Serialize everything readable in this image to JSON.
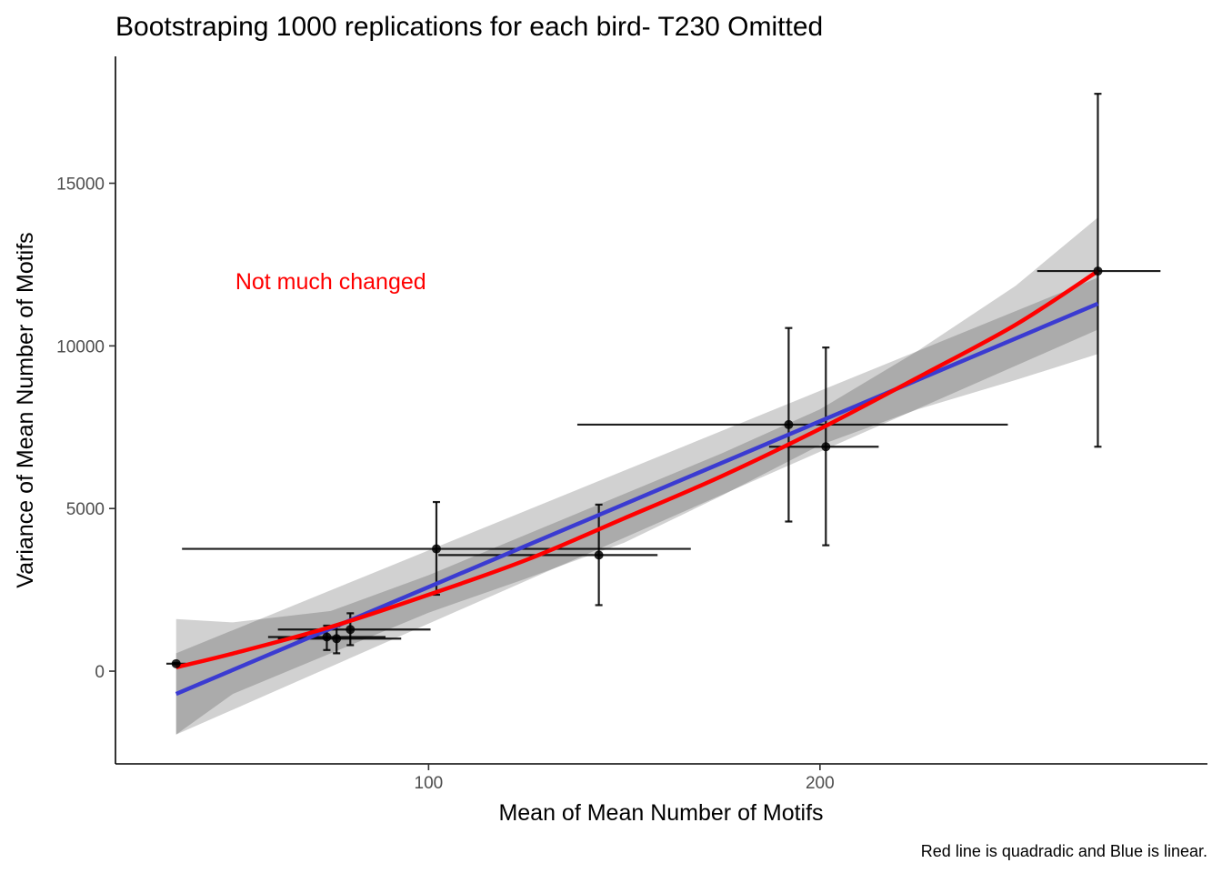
{
  "chart_data": {
    "type": "scatter",
    "title": "Bootstraping 1000 replications for each bird- T230 Omitted",
    "xlabel": "Mean of Mean Number of Motifs",
    "ylabel": "Variance of Mean Number of Motifs",
    "caption": "Red line is quadradic and Blue is linear.",
    "annotation": {
      "text": "Not much changed",
      "x": 75,
      "y": 12000,
      "color": "#ff0000"
    },
    "xlim": [
      20,
      299
    ],
    "ylim": [
      -2850,
      18900
    ],
    "x_ticks": [
      {
        "value": 100,
        "label": "100"
      },
      {
        "value": 200,
        "label": "200"
      }
    ],
    "y_ticks": [
      {
        "value": 0,
        "label": "0"
      },
      {
        "value": 5000,
        "label": "5000"
      },
      {
        "value": 10000,
        "label": "10000"
      },
      {
        "value": 15000,
        "label": "15000"
      }
    ],
    "grid": false,
    "legend": "none",
    "colors": {
      "quadratic": "#ff0000",
      "linear": "#3b3bd1",
      "ci_band": "#000000",
      "points": "#000000"
    },
    "points": [
      {
        "x": 35.5,
        "y": 230,
        "xmin": 33,
        "xmax": 38,
        "ymin": 210,
        "ymax": 250
      },
      {
        "x": 74,
        "y": 1050,
        "xmin": 59,
        "xmax": 89,
        "ymin": 650,
        "ymax": 1400
      },
      {
        "x": 76.5,
        "y": 1000,
        "xmin": 61.5,
        "xmax": 93,
        "ymin": 550,
        "ymax": 1380
      },
      {
        "x": 80,
        "y": 1280,
        "xmin": 61.5,
        "xmax": 100.5,
        "ymin": 800,
        "ymax": 1780
      },
      {
        "x": 102,
        "y": 3760,
        "xmin": 37,
        "xmax": 167,
        "ymin": 2350,
        "ymax": 5200
      },
      {
        "x": 143.5,
        "y": 3570,
        "xmin": 102.5,
        "xmax": 158.5,
        "ymin": 2030,
        "ymax": 5120
      },
      {
        "x": 192,
        "y": 7580,
        "xmin": 138,
        "xmax": 248,
        "ymin": 4600,
        "ymax": 10550
      },
      {
        "x": 201.5,
        "y": 6900,
        "xmin": 187,
        "xmax": 215,
        "ymin": 3870,
        "ymax": 9950
      },
      {
        "x": 271,
        "y": 12300,
        "xmin": 255.5,
        "xmax": 287,
        "ymin": 6900,
        "ymax": 17750
      }
    ],
    "series": [
      {
        "fit": "linear",
        "x": [
          35.5,
          271
        ],
        "y": [
          -700,
          11300
        ],
        "ci_lower": [
          -1950,
          10500
        ],
        "ci_upper": [
          550,
          12100
        ]
      },
      {
        "fit": "quadratic",
        "x": [
          35.5,
          50,
          75,
          100,
          125,
          150,
          175,
          200,
          225,
          250,
          271
        ],
        "y": [
          120,
          540,
          1360,
          2350,
          3420,
          4700,
          6000,
          7450,
          9030,
          10650,
          12300
        ],
        "ci_lower": [
          -1950,
          -700,
          550,
          1800,
          2850,
          3950,
          5400,
          6950,
          8050,
          8950,
          9750
        ],
        "ci_upper": [
          1600,
          1500,
          1850,
          2950,
          4200,
          5450,
          6700,
          8050,
          9850,
          11850,
          13950
        ]
      }
    ]
  }
}
